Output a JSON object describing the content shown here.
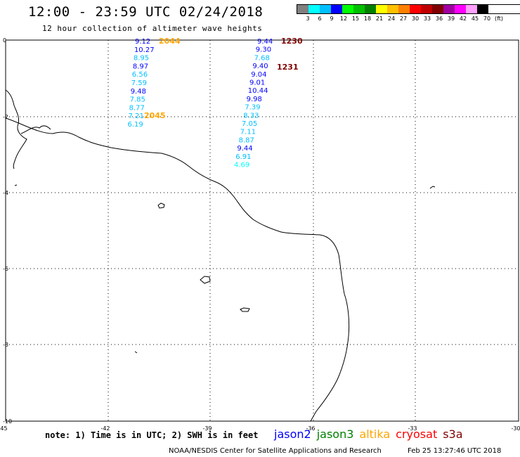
{
  "header": {
    "title": "12:00 - 23:59 UTC 02/24/2018",
    "subtitle": "12 hour collection of altimeter wave heights"
  },
  "legend": {
    "labels": [
      "3",
      "6",
      "9",
      "12",
      "15",
      "18",
      "21",
      "24",
      "27",
      "30",
      "33",
      "36",
      "39",
      "42",
      "45",
      "70",
      "(ft)"
    ],
    "colors": [
      "#808080",
      "#00ffff",
      "#00bfff",
      "#0000ff",
      "#00ff00",
      "#00c000",
      "#008000",
      "#ffff00",
      "#ffc000",
      "#ff8000",
      "#ff0000",
      "#c00000",
      "#800000",
      "#a000a0",
      "#ff00ff",
      "#ffa0ff",
      "#000000"
    ]
  },
  "axes": {
    "x_ticks": [
      "-45",
      "-42",
      "-39",
      "-36",
      "-33",
      "-30"
    ],
    "y_ticks": [
      "0",
      "-2",
      "-4",
      "-6",
      "-8",
      "-10"
    ]
  },
  "track1": {
    "times": [
      {
        "label": "2044",
        "color": "#ffa500"
      },
      {
        "label": "2045",
        "color": "#ffa500"
      }
    ],
    "values": [
      {
        "v": "9.12",
        "color": "#0000ff"
      },
      {
        "v": "10.27",
        "color": "#0000ff"
      },
      {
        "v": "8.95",
        "color": "#00bfff"
      },
      {
        "v": "8.97",
        "color": "#0000ff"
      },
      {
        "v": "6.56",
        "color": "#00bfff"
      },
      {
        "v": "7.59",
        "color": "#00bfff"
      },
      {
        "v": "9.48",
        "color": "#0000ff"
      },
      {
        "v": "7.85",
        "color": "#00bfff"
      },
      {
        "v": "8.77",
        "color": "#00bfff"
      },
      {
        "v": "7.21",
        "color": "#00bfff"
      },
      {
        "v": "6.19",
        "color": "#00bfff"
      }
    ]
  },
  "track2": {
    "times": [
      {
        "label": "1230",
        "color": "#800000"
      },
      {
        "label": "1231",
        "color": "#800000"
      }
    ],
    "values": [
      {
        "v": "9.44",
        "color": "#0000ff"
      },
      {
        "v": "9.30",
        "color": "#0000ff"
      },
      {
        "v": "7.68",
        "color": "#00bfff"
      },
      {
        "v": "9.40",
        "color": "#0000ff"
      },
      {
        "v": "9.04",
        "color": "#0000ff"
      },
      {
        "v": "9.01",
        "color": "#0000ff"
      },
      {
        "v": "10.44",
        "color": "#0000ff"
      },
      {
        "v": "9.98",
        "color": "#0000ff"
      },
      {
        "v": "7.39",
        "color": "#00bfff"
      },
      {
        "v": "8.33",
        "color": "#00bfff"
      },
      {
        "v": "7.05",
        "color": "#00bfff"
      },
      {
        "v": "7.11",
        "color": "#00bfff"
      },
      {
        "v": "8.87",
        "color": "#00bfff"
      },
      {
        "v": "9.44",
        "color": "#0000ff"
      },
      {
        "v": "6.91",
        "color": "#00bfff"
      },
      {
        "v": "4.69",
        "color": "#00ffff"
      }
    ]
  },
  "footer": {
    "note": "note: 1) Time is in UTC; 2) SWH is in feet",
    "satellites": [
      {
        "name": "jason2",
        "color": "#0000ff"
      },
      {
        "name": "jason3",
        "color": "#008000"
      },
      {
        "name": "altika",
        "color": "#ffa500"
      },
      {
        "name": "cryosat",
        "color": "#ff0000"
      },
      {
        "name": "s3a",
        "color": "#800000"
      }
    ],
    "credit": "NOAA/NESDIS Center for Satellite Applications and Research",
    "timestamp": "Feb 25 13:27:46 UTC 2018"
  }
}
